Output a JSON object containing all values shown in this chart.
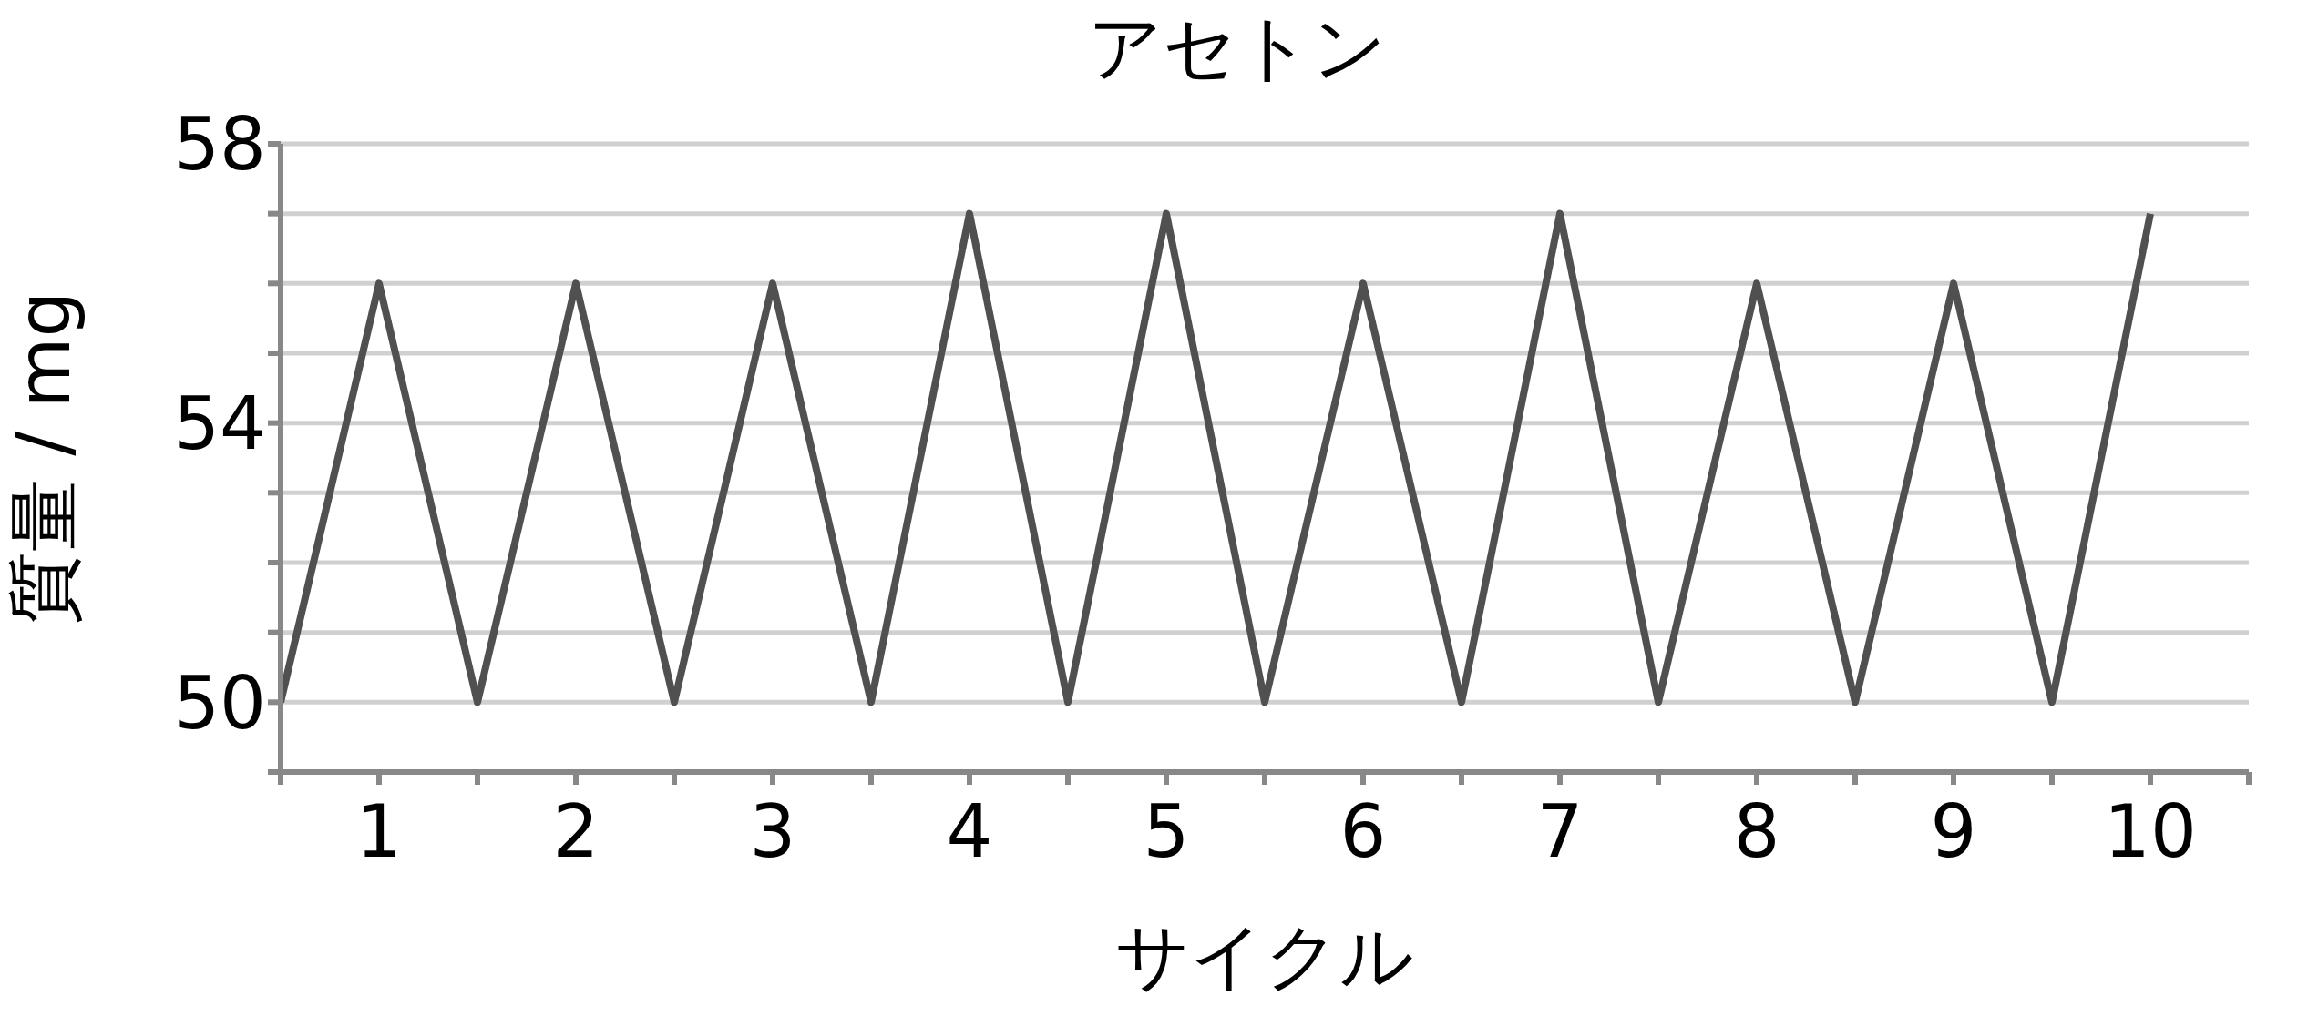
{
  "chart_data": {
    "type": "line",
    "title": "アセトン",
    "xlabel": "サイクル",
    "ylabel": "質量 / mg",
    "x": [
      0.5,
      1,
      1.5,
      2,
      2.5,
      3,
      3.5,
      4,
      4.5,
      5,
      5.5,
      6,
      6.5,
      7,
      7.5,
      8,
      8.5,
      9,
      9.5,
      10
    ],
    "series": [
      {
        "color": "#505050",
        "values": [
          50,
          56,
          50,
          56,
          50,
          56,
          50,
          57,
          50,
          57,
          50,
          56,
          50,
          57,
          50,
          56,
          50,
          56,
          50,
          57
        ]
      }
    ],
    "xlim": [
      0.5,
      10.5
    ],
    "xticks": [
      {
        "value": 0.5,
        "label": null
      },
      1,
      {
        "value": 1.5,
        "label": null
      },
      2,
      {
        "value": 2.5,
        "label": null
      },
      3,
      {
        "value": 3.5,
        "label": null
      },
      4,
      {
        "value": 4.5,
        "label": null
      },
      5,
      {
        "value": 5.5,
        "label": null
      },
      6,
      {
        "value": 6.5,
        "label": null
      },
      7,
      {
        "value": 7.5,
        "label": null
      },
      8,
      {
        "value": 8.5,
        "label": null
      },
      9,
      {
        "value": 9.5,
        "label": null
      },
      10,
      {
        "value": 10.5,
        "label": null
      }
    ],
    "ylim": [
      49,
      58
    ],
    "yticks": [
      {
        "value": 49,
        "label": null
      },
      50,
      {
        "value": 51,
        "label": null
      },
      {
        "value": 52,
        "label": null
      },
      {
        "value": 53,
        "label": null
      },
      54,
      {
        "value": 55,
        "label": null
      },
      {
        "value": 56,
        "label": null
      },
      {
        "value": 57,
        "label": null
      },
      58
    ],
    "grid": "y",
    "marker": "none",
    "line_style": "solid"
  }
}
